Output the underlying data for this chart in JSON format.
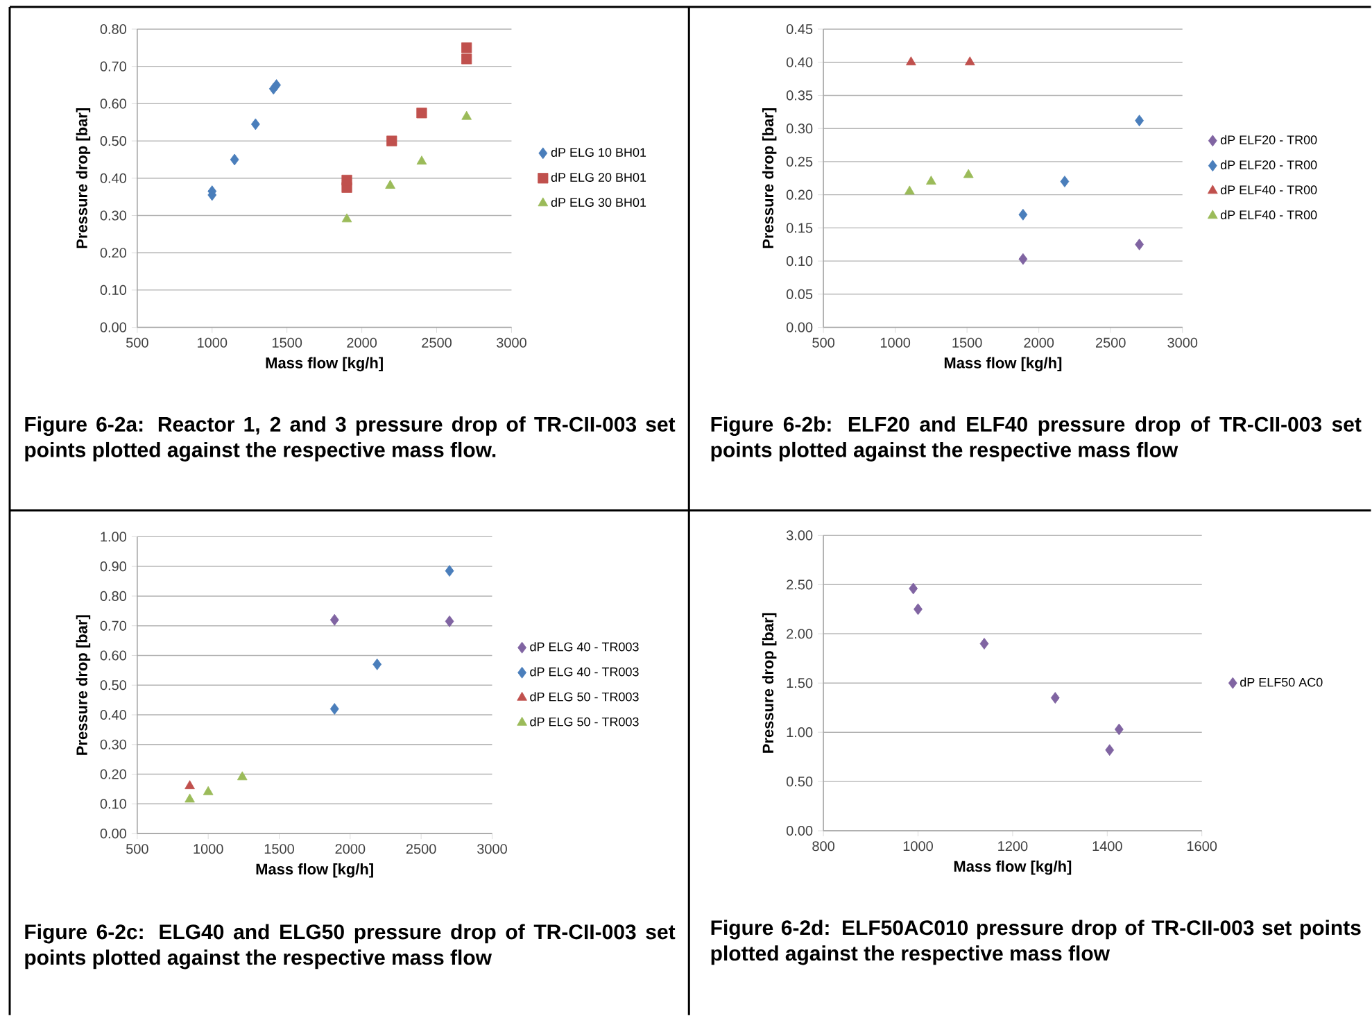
{
  "chart_data": [
    {
      "type": "scatter",
      "xlabel": "Mass flow [kg/h]",
      "ylabel": "Pressure drop [bar]",
      "annotations": [
        "Figure 6-2a: Reactor 1, 2 and 3 pressure drop of TR-CII-003 set points plotted against the respective mass flow."
      ],
      "xlim": [
        500,
        3000
      ],
      "ylim": [
        0,
        0.8
      ],
      "xticks": [
        500,
        1000,
        1500,
        2000,
        2500,
        3000
      ],
      "yticks": [
        {
          "value": 0,
          "label": "0.00"
        },
        {
          "value": 0.1,
          "label": "0.10"
        },
        {
          "value": 0.2,
          "label": "0.20"
        },
        {
          "value": 0.3,
          "label": "0.30"
        },
        {
          "value": 0.4,
          "label": "0.40"
        },
        {
          "value": 0.5,
          "label": "0.50"
        },
        {
          "value": 0.6,
          "label": "0.60"
        },
        {
          "value": 0.7,
          "label": "0.70"
        },
        {
          "value": 0.8,
          "label": "0.80"
        }
      ],
      "grid": "y",
      "legend": "right",
      "series": [
        {
          "name": "dP ELG 10 BH01",
          "color": "#4a7ebb",
          "marker": "diamond",
          "x": [
            1000,
            1000,
            1150,
            1290,
            1410,
            1430
          ],
          "values": [
            0.355,
            0.365,
            0.45,
            0.545,
            0.64,
            0.65
          ]
        },
        {
          "name": "dP ELG 20 BH01",
          "color": "#c0504d",
          "marker": "square",
          "x": [
            1900,
            1900,
            2200,
            2400,
            2700,
            2700
          ],
          "values": [
            0.375,
            0.395,
            0.5,
            0.575,
            0.72,
            0.75
          ]
        },
        {
          "name": "dP ELG 30 BH01",
          "color": "#9bbb59",
          "marker": "triangle",
          "x": [
            1900,
            2190,
            2400,
            2700
          ],
          "values": [
            0.29,
            0.38,
            0.445,
            0.565
          ]
        }
      ]
    },
    {
      "type": "scatter",
      "xlabel": "Mass flow [kg/h]",
      "ylabel": "Pressure drop [bar]",
      "annotations": [
        "Figure 6-2b: ELF20 and ELF40 pressure drop of TR-CII-003 set points plotted against the respective mass flow"
      ],
      "xlim": [
        500,
        3000
      ],
      "ylim": [
        0,
        0.45
      ],
      "xticks": [
        500,
        1000,
        1500,
        2000,
        2500,
        3000
      ],
      "yticks": [
        {
          "value": 0,
          "label": "0.00"
        },
        {
          "value": 0.05,
          "label": "0.05"
        },
        {
          "value": 0.1,
          "label": "0.10"
        },
        {
          "value": 0.15,
          "label": "0.15"
        },
        {
          "value": 0.2,
          "label": "0.20"
        },
        {
          "value": 0.25,
          "label": "0.25"
        },
        {
          "value": 0.3,
          "label": "0.30"
        },
        {
          "value": 0.35,
          "label": "0.35"
        },
        {
          "value": 0.4,
          "label": "0.40"
        },
        {
          "value": 0.45,
          "label": "0.45"
        }
      ],
      "grid": "y",
      "legend": "right",
      "series": [
        {
          "name": "dP ELF20 - TR00",
          "color": "#8064a2",
          "marker": "diamond",
          "x": [
            1890,
            2700
          ],
          "values": [
            0.103,
            0.125
          ]
        },
        {
          "name": "dP ELF20 - TR00",
          "color": "#4a7ebb",
          "marker": "diamond",
          "x": [
            1890,
            2180,
            2700
          ],
          "values": [
            0.17,
            0.22,
            0.312
          ]
        },
        {
          "name": "dP ELF40 - TR00",
          "color": "#c0504d",
          "marker": "triangle",
          "x": [
            1110,
            1520
          ],
          "values": [
            0.4,
            0.4
          ]
        },
        {
          "name": "dP ELF40 - TR00",
          "color": "#9bbb59",
          "marker": "triangle",
          "x": [
            1100,
            1250,
            1510
          ],
          "values": [
            0.205,
            0.22,
            0.23
          ]
        }
      ]
    },
    {
      "type": "scatter",
      "xlabel": "Mass flow [kg/h]",
      "ylabel": "Pressure drop [bar]",
      "annotations": [
        "Figure 6-2c: ELG40 and ELG50 pressure drop of TR-CII-003 set points plotted against the respective mass flow"
      ],
      "xlim": [
        500,
        3000
      ],
      "ylim": [
        0,
        1
      ],
      "xticks": [
        500,
        1000,
        1500,
        2000,
        2500,
        3000
      ],
      "yticks": [
        {
          "value": 0,
          "label": "0.00"
        },
        {
          "value": 0.1,
          "label": "0.10"
        },
        {
          "value": 0.2,
          "label": "0.20"
        },
        {
          "value": 0.3,
          "label": "0.30"
        },
        {
          "value": 0.4,
          "label": "0.40"
        },
        {
          "value": 0.5,
          "label": "0.50"
        },
        {
          "value": 0.6,
          "label": "0.60"
        },
        {
          "value": 0.7,
          "label": "0.70"
        },
        {
          "value": 0.8,
          "label": "0.80"
        },
        {
          "value": 0.9,
          "label": "0.90"
        },
        {
          "value": 1,
          "label": "1.00"
        }
      ],
      "grid": "y",
      "legend": "right",
      "series": [
        {
          "name": "dP ELG 40 - TR003",
          "color": "#8064a2",
          "marker": "diamond",
          "x": [
            1890,
            2700
          ],
          "values": [
            0.72,
            0.715
          ]
        },
        {
          "name": "dP ELG 40 - TR003",
          "color": "#4a7ebb",
          "marker": "diamond",
          "x": [
            1890,
            2190,
            2700
          ],
          "values": [
            0.42,
            0.57,
            0.885
          ]
        },
        {
          "name": "dP ELG 50 - TR003",
          "color": "#c0504d",
          "marker": "triangle",
          "x": [
            870
          ],
          "values": [
            0.16
          ]
        },
        {
          "name": "dP ELG 50 - TR003",
          "color": "#9bbb59",
          "marker": "triangle",
          "x": [
            870,
            1000,
            1240
          ],
          "values": [
            0.115,
            0.14,
            0.19
          ]
        }
      ]
    },
    {
      "type": "scatter",
      "xlabel": "Mass flow [kg/h]",
      "ylabel": "Pressure drop [bar]",
      "annotations": [
        "Figure 6-2d: ELF50AC010 pressure drop of TR-CII-003 set points plotted against the respective mass flow"
      ],
      "xlim": [
        800,
        1600
      ],
      "ylim": [
        0,
        3
      ],
      "xticks": [
        800,
        1000,
        1200,
        1400,
        1600
      ],
      "yticks": [
        {
          "value": 0,
          "label": "0.00"
        },
        {
          "value": 0.5,
          "label": "0.50"
        },
        {
          "value": 1,
          "label": "1.00"
        },
        {
          "value": 1.5,
          "label": "1.50"
        },
        {
          "value": 2,
          "label": "2.00"
        },
        {
          "value": 2.5,
          "label": "2.50"
        },
        {
          "value": 3,
          "label": "3.00"
        }
      ],
      "grid": "y",
      "legend": "right",
      "series": [
        {
          "name": "dP ELF50 AC0",
          "color": "#8064a2",
          "marker": "diamond",
          "x": [
            990,
            1000,
            1140,
            1290,
            1405,
            1425
          ],
          "values": [
            2.46,
            2.25,
            1.9,
            1.35,
            0.82,
            1.03
          ]
        }
      ]
    }
  ]
}
